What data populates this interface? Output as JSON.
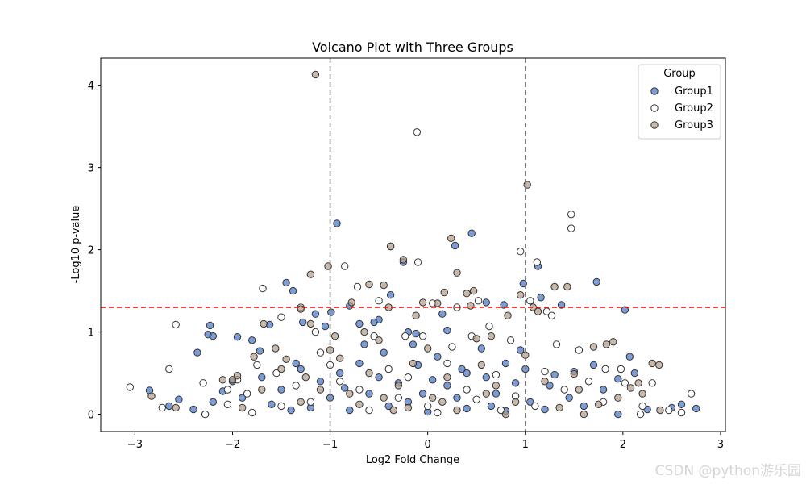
{
  "chart_data": {
    "type": "scatter",
    "title": "Volcano Plot with Three Groups",
    "xlabel": "Log2 Fold Change",
    "ylabel": "-Log10 p-value",
    "xlim": [
      -3.35,
      3.05
    ],
    "ylim": [
      -0.21,
      4.33
    ],
    "xticks": [
      -3,
      -2,
      -1,
      0,
      1,
      2,
      3
    ],
    "yticks": [
      0,
      1,
      2,
      3,
      4
    ],
    "grid": false,
    "legend": {
      "title": "Group",
      "position": "top-right"
    },
    "reference_lines": {
      "vertical_x": [
        -1,
        1
      ],
      "vertical_color": "#808080",
      "horizontal_y": 1.3,
      "horizontal_color": "#ff0000"
    },
    "series": [
      {
        "name": "Group1",
        "fill": "#4472c4",
        "points": [
          [
            -2.25,
            0.97
          ],
          [
            -2.23,
            1.08
          ],
          [
            -2.2,
            0.95
          ],
          [
            -2.36,
            0.75
          ],
          [
            -1.95,
            0.94
          ],
          [
            -1.8,
            0.9
          ],
          [
            -1.72,
            0.77
          ],
          [
            -1.62,
            1.09
          ],
          [
            -1.45,
            1.6
          ],
          [
            -1.38,
            1.5
          ],
          [
            -1.28,
            1.12
          ],
          [
            -1.15,
            1.22
          ],
          [
            -1.05,
            1.07
          ],
          [
            -0.99,
            1.24
          ],
          [
            -0.93,
            2.32
          ],
          [
            -0.8,
            1.32
          ],
          [
            -0.7,
            1.1
          ],
          [
            -0.55,
            1.12
          ],
          [
            -0.5,
            1.15
          ],
          [
            -0.38,
            1.45
          ],
          [
            -0.25,
            1.85
          ],
          [
            -0.2,
            1.0
          ],
          [
            -0.12,
            0.98
          ],
          [
            0.15,
            1.22
          ],
          [
            0.2,
            1.02
          ],
          [
            0.28,
            2.05
          ],
          [
            0.45,
            2.2
          ],
          [
            0.6,
            1.36
          ],
          [
            0.78,
            1.33
          ],
          [
            0.98,
            1.59
          ],
          [
            1.13,
            1.8
          ],
          [
            1.16,
            1.42
          ],
          [
            1.37,
            1.33
          ],
          [
            1.73,
            1.61
          ],
          [
            2.02,
            1.27
          ],
          [
            2.07,
            0.7
          ],
          [
            2.12,
            0.5
          ],
          [
            1.95,
            0.43
          ],
          [
            1.7,
            0.6
          ],
          [
            1.5,
            0.52
          ],
          [
            1.25,
            0.35
          ],
          [
            1.0,
            0.55
          ],
          [
            0.8,
            0.62
          ],
          [
            0.6,
            0.45
          ],
          [
            0.4,
            0.5
          ],
          [
            0.2,
            0.35
          ],
          [
            0.05,
            0.42
          ],
          [
            -0.1,
            0.6
          ],
          [
            -0.3,
            0.38
          ],
          [
            -0.5,
            0.45
          ],
          [
            -0.7,
            0.62
          ],
          [
            -0.9,
            0.5
          ],
          [
            -1.1,
            0.4
          ],
          [
            -1.3,
            0.55
          ],
          [
            -1.5,
            0.3
          ],
          [
            -1.7,
            0.45
          ],
          [
            -1.9,
            0.2
          ],
          [
            -2.1,
            0.28
          ],
          [
            -2.4,
            0.06
          ],
          [
            -2.55,
            0.18
          ],
          [
            -2.65,
            0.1
          ],
          [
            -2.85,
            0.29
          ],
          [
            -2.0,
            0.4
          ],
          [
            -1.6,
            0.12
          ],
          [
            -1.2,
            0.08
          ],
          [
            -0.8,
            0.05
          ],
          [
            -0.4,
            0.1
          ],
          [
            0.0,
            0.03
          ],
          [
            0.4,
            0.07
          ],
          [
            0.8,
            0.04
          ],
          [
            1.2,
            0.06
          ],
          [
            1.6,
            0.1
          ],
          [
            1.95,
            0.0
          ],
          [
            2.25,
            0.06
          ],
          [
            2.5,
            0.08
          ],
          [
            2.6,
            0.12
          ],
          [
            2.75,
            0.07
          ],
          [
            -1.0,
            0.2
          ],
          [
            -0.6,
            0.25
          ],
          [
            -0.2,
            0.15
          ],
          [
            0.3,
            0.2
          ],
          [
            0.7,
            0.25
          ],
          [
            1.05,
            0.15
          ],
          [
            1.45,
            0.2
          ],
          [
            1.8,
            0.3
          ],
          [
            -0.45,
            0.75
          ],
          [
            0.1,
            0.7
          ],
          [
            0.55,
            0.8
          ],
          [
            -0.15,
            0.85
          ],
          [
            0.95,
            0.78
          ],
          [
            -1.35,
            0.62
          ],
          [
            -0.65,
            0.85
          ],
          [
            0.35,
            0.55
          ],
          [
            -0.05,
            0.25
          ],
          [
            0.65,
            0.1
          ],
          [
            -1.4,
            0.05
          ],
          [
            -2.2,
            0.15
          ],
          [
            1.3,
            0.48
          ],
          [
            -0.85,
            0.32
          ],
          [
            0.9,
            0.38
          ]
        ]
      },
      {
        "name": "Group2",
        "fill": "#ffffff",
        "points": [
          [
            -3.05,
            0.33
          ],
          [
            -2.65,
            0.55
          ],
          [
            -2.58,
            1.09
          ],
          [
            -2.72,
            0.08
          ],
          [
            -2.3,
            0.38
          ],
          [
            -2.28,
            0.0
          ],
          [
            -2.05,
            0.3
          ],
          [
            -1.95,
            0.42
          ],
          [
            -1.85,
            0.25
          ],
          [
            -1.69,
            1.53
          ],
          [
            -1.5,
            1.18
          ],
          [
            -1.3,
            1.3
          ],
          [
            -1.1,
            0.75
          ],
          [
            -0.85,
            1.8
          ],
          [
            -0.72,
            1.55
          ],
          [
            -0.5,
            1.38
          ],
          [
            -0.38,
            2.04
          ],
          [
            -0.23,
            0.95
          ],
          [
            -0.11,
            3.43
          ],
          [
            -0.1,
            1.85
          ],
          [
            0.05,
            1.35
          ],
          [
            0.3,
            1.3
          ],
          [
            0.52,
            1.38
          ],
          [
            0.63,
            1.07
          ],
          [
            0.95,
            1.98
          ],
          [
            1.05,
            1.38
          ],
          [
            1.12,
            1.85
          ],
          [
            1.22,
            1.25
          ],
          [
            1.27,
            1.2
          ],
          [
            1.47,
            2.43
          ],
          [
            1.47,
            2.26
          ],
          [
            1.55,
            0.78
          ],
          [
            1.82,
            0.55
          ],
          [
            1.98,
            0.55
          ],
          [
            2.02,
            0.38
          ],
          [
            2.2,
            0.1
          ],
          [
            2.3,
            0.38
          ],
          [
            2.47,
            0.05
          ],
          [
            2.6,
            0.02
          ],
          [
            2.7,
            0.25
          ],
          [
            1.4,
            0.3
          ],
          [
            1.1,
            0.1
          ],
          [
            0.75,
            0.05
          ],
          [
            0.4,
            0.3
          ],
          [
            0.0,
            0.1
          ],
          [
            -0.3,
            0.2
          ],
          [
            -0.6,
            0.05
          ],
          [
            -0.9,
            0.4
          ],
          [
            -1.2,
            0.15
          ],
          [
            -1.5,
            0.1
          ],
          [
            -1.8,
            0.02
          ],
          [
            -2.05,
            0.12
          ],
          [
            -1.55,
            0.5
          ],
          [
            -1.0,
            0.6
          ],
          [
            -0.4,
            0.55
          ],
          [
            0.2,
            0.62
          ],
          [
            0.7,
            0.48
          ],
          [
            1.2,
            0.52
          ],
          [
            1.65,
            0.4
          ],
          [
            -0.2,
            0.45
          ],
          [
            0.5,
            0.18
          ],
          [
            -0.7,
            0.3
          ],
          [
            0.9,
            0.22
          ],
          [
            -1.35,
            0.35
          ],
          [
            1.8,
            0.15
          ],
          [
            -0.55,
            0.95
          ],
          [
            0.25,
            0.82
          ],
          [
            0.85,
            0.9
          ],
          [
            -1.15,
            1.0
          ],
          [
            0.1,
            0.02
          ],
          [
            -0.05,
            0.95
          ],
          [
            0.45,
            0.95
          ],
          [
            1.32,
            0.85
          ],
          [
            -1.75,
            0.6
          ],
          [
            2.18,
            0.0
          ]
        ]
      },
      {
        "name": "Group3",
        "fill": "#b09b86",
        "points": [
          [
            -2.83,
            0.22
          ],
          [
            -2.58,
            0.08
          ],
          [
            -2.1,
            0.42
          ],
          [
            -1.95,
            0.47
          ],
          [
            -1.78,
            0.7
          ],
          [
            -1.68,
            1.1
          ],
          [
            -1.56,
            0.8
          ],
          [
            -1.45,
            0.67
          ],
          [
            -1.3,
            1.28
          ],
          [
            -1.2,
            1.7
          ],
          [
            -1.2,
            1.1
          ],
          [
            -1.02,
            1.8
          ],
          [
            -0.95,
            0.95
          ],
          [
            -0.78,
            1.36
          ],
          [
            -0.65,
            1.0
          ],
          [
            -0.6,
            1.58
          ],
          [
            -0.45,
            1.57
          ],
          [
            -0.4,
            1.3
          ],
          [
            -0.38,
            2.04
          ],
          [
            -0.25,
            1.88
          ],
          [
            -0.12,
            1.2
          ],
          [
            -0.05,
            1.36
          ],
          [
            0.1,
            1.35
          ],
          [
            0.17,
            1.48
          ],
          [
            0.24,
            2.14
          ],
          [
            0.3,
            1.72
          ],
          [
            0.4,
            1.47
          ],
          [
            0.44,
            1.32
          ],
          [
            0.47,
            1.5
          ],
          [
            0.65,
            0.95
          ],
          [
            0.82,
            1.2
          ],
          [
            0.95,
            1.45
          ],
          [
            1.02,
            2.79
          ],
          [
            1.08,
            1.3
          ],
          [
            1.13,
            1.25
          ],
          [
            1.3,
            1.55
          ],
          [
            1.43,
            1.55
          ],
          [
            1.5,
            0.49
          ],
          [
            1.7,
            0.82
          ],
          [
            1.83,
            0.85
          ],
          [
            1.9,
            0.88
          ],
          [
            2.08,
            0.32
          ],
          [
            2.16,
            0.38
          ],
          [
            2.3,
            0.62
          ],
          [
            2.37,
            0.6
          ],
          [
            2.38,
            0.05
          ],
          [
            -1.15,
            4.13
          ],
          [
            -0.5,
            0.9
          ],
          [
            0.0,
            0.8
          ],
          [
            0.5,
            0.92
          ],
          [
            1.0,
            0.72
          ],
          [
            -1.0,
            0.78
          ],
          [
            -1.5,
            0.55
          ],
          [
            1.55,
            0.3
          ],
          [
            1.2,
            0.4
          ],
          [
            0.7,
            0.35
          ],
          [
            0.2,
            0.45
          ],
          [
            -0.3,
            0.35
          ],
          [
            -0.8,
            0.25
          ],
          [
            -1.3,
            0.15
          ],
          [
            -1.9,
            0.08
          ],
          [
            1.95,
            0.2
          ],
          [
            1.75,
            0.12
          ],
          [
            0.9,
            0.15
          ],
          [
            0.3,
            0.05
          ],
          [
            -0.2,
            0.08
          ],
          [
            -0.7,
            0.12
          ],
          [
            -1.1,
            0.3
          ],
          [
            -1.7,
            0.3
          ],
          [
            -2.0,
            0.42
          ],
          [
            2.2,
            0.25
          ],
          [
            1.35,
            0.08
          ],
          [
            0.55,
            0.6
          ],
          [
            -0.15,
            0.62
          ],
          [
            -0.6,
            0.5
          ],
          [
            0.05,
            0.2
          ],
          [
            -0.35,
            0.05
          ],
          [
            0.8,
            0.0
          ],
          [
            -0.9,
            0.68
          ],
          [
            1.6,
            0.0
          ],
          [
            -1.25,
            0.45
          ],
          [
            0.6,
            0.25
          ],
          [
            -0.45,
            0.2
          ],
          [
            0.15,
            0.15
          ]
        ]
      }
    ]
  },
  "watermark": "CSDN @python游乐园"
}
